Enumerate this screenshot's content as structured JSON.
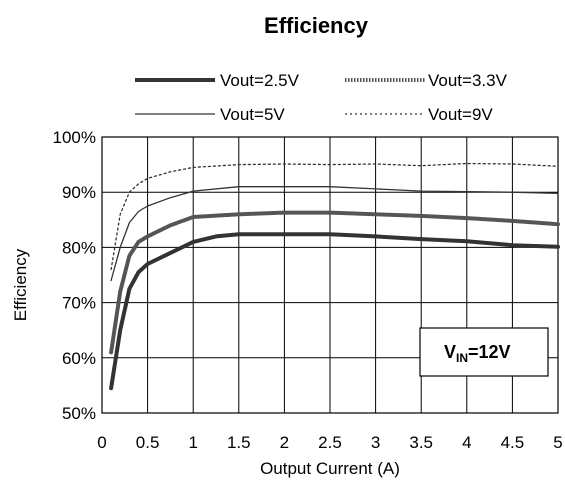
{
  "chart_data": {
    "type": "line",
    "title": "Efficiency",
    "xlabel": "Output Current (A)",
    "ylabel": "Efficiency",
    "xlim": [
      0,
      5
    ],
    "ylim": [
      50,
      100
    ],
    "x_ticks": [
      "0",
      "0.5",
      "1",
      "1.5",
      "2",
      "2.5",
      "3",
      "3.5",
      "4",
      "4.5",
      "5"
    ],
    "y_ticks": [
      "50%",
      "60%",
      "70%",
      "80%",
      "90%",
      "100%"
    ],
    "grid": true,
    "legend_position": "top",
    "annotation": {
      "main": "V",
      "sub": "IN",
      "suffix": "=12V"
    },
    "series": [
      {
        "name": "Vout=2.5V",
        "style": "thick-solid",
        "color": "#333333",
        "points": [
          [
            0.1,
            54.5
          ],
          [
            0.2,
            65
          ],
          [
            0.3,
            72.5
          ],
          [
            0.4,
            75.5
          ],
          [
            0.5,
            77
          ],
          [
            0.75,
            79
          ],
          [
            1,
            81
          ],
          [
            1.25,
            82
          ],
          [
            1.5,
            82.4
          ],
          [
            2,
            82.4
          ],
          [
            2.5,
            82.4
          ],
          [
            3,
            82
          ],
          [
            3.5,
            81.5
          ],
          [
            4,
            81.1
          ],
          [
            4.5,
            80.4
          ],
          [
            5,
            80.1
          ]
        ]
      },
      {
        "name": "Vout=3.3V",
        "style": "dotted-thick",
        "color": "#555555",
        "points": [
          [
            0.1,
            61
          ],
          [
            0.2,
            72
          ],
          [
            0.3,
            78.5
          ],
          [
            0.4,
            81
          ],
          [
            0.5,
            82
          ],
          [
            0.75,
            84
          ],
          [
            1,
            85.5
          ],
          [
            1.5,
            86
          ],
          [
            2,
            86.3
          ],
          [
            2.5,
            86.3
          ],
          [
            3,
            86
          ],
          [
            3.5,
            85.7
          ],
          [
            4,
            85.3
          ],
          [
            4.5,
            84.8
          ],
          [
            5,
            84.2
          ]
        ]
      },
      {
        "name": "Vout=5V",
        "style": "thin-solid",
        "color": "#333333",
        "points": [
          [
            0.1,
            74
          ],
          [
            0.2,
            80
          ],
          [
            0.3,
            84.5
          ],
          [
            0.4,
            86.5
          ],
          [
            0.5,
            87.5
          ],
          [
            0.75,
            89
          ],
          [
            1,
            90.2
          ],
          [
            1.5,
            91
          ],
          [
            2,
            91
          ],
          [
            2.5,
            91
          ],
          [
            3,
            90.6
          ],
          [
            3.5,
            90.2
          ],
          [
            4,
            90.1
          ],
          [
            4.5,
            90
          ],
          [
            5,
            89.8
          ]
        ]
      },
      {
        "name": "Vout=9V",
        "style": "dotted-thin",
        "color": "#333333",
        "points": [
          [
            0.1,
            76
          ],
          [
            0.2,
            86
          ],
          [
            0.3,
            90
          ],
          [
            0.4,
            91.5
          ],
          [
            0.5,
            92.5
          ],
          [
            0.75,
            93.7
          ],
          [
            1,
            94.5
          ],
          [
            1.5,
            95
          ],
          [
            2,
            95.1
          ],
          [
            2.5,
            95
          ],
          [
            3,
            95.1
          ],
          [
            3.5,
            94.8
          ],
          [
            4,
            95.2
          ],
          [
            4.5,
            95.1
          ],
          [
            5,
            94.7
          ]
        ]
      }
    ]
  }
}
